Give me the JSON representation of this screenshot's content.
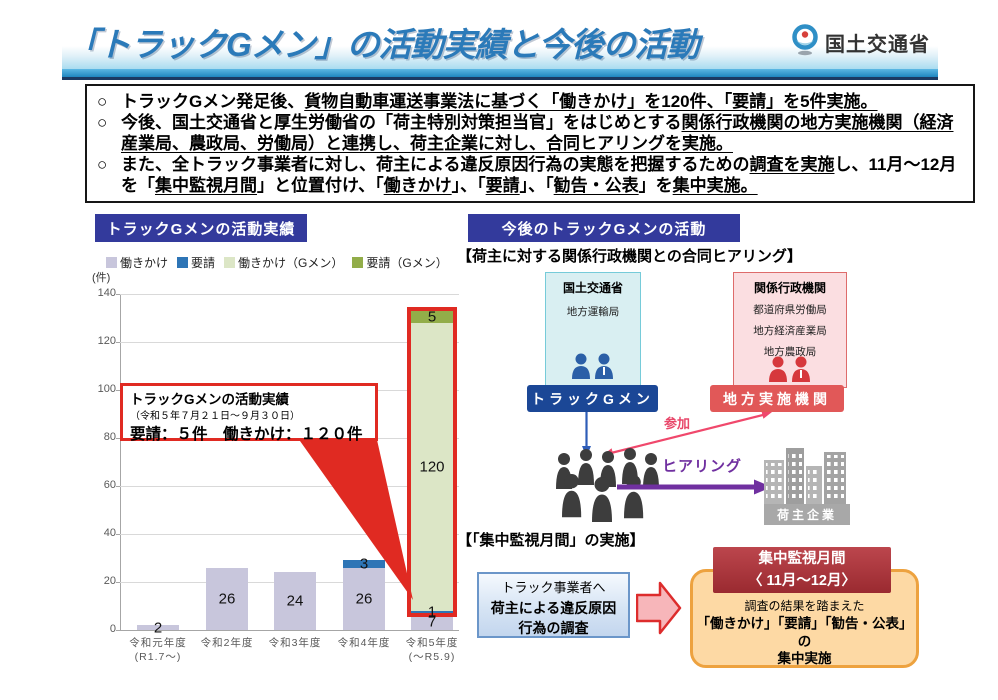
{
  "header": {
    "title": "「トラックGメン」の活動実績と今後の活動",
    "agency_name": "国土交通省"
  },
  "summary": {
    "marker": "○",
    "bullets": [
      {
        "segments": [
          {
            "t": "トラックGメン発足後、"
          },
          {
            "t": "貨物自動車運送事業法に基づく「働きかけ」を120件、「要請」を5件実施。",
            "u": true
          }
        ]
      },
      {
        "segments": [
          {
            "t": "今後、国土交通省と厚生労働省の「荷主特別対策担当官」をはじめとする"
          },
          {
            "t": "関係行政機関の地方実施機関（経済産業局、農政局、労働局）と連携し、荷主企業に対し、合同ヒアリングを実施。",
            "u": true
          }
        ]
      },
      {
        "segments": [
          {
            "t": "また、全トラック事業者に対し、荷主による違反原因行為の実態を把握するための"
          },
          {
            "t": "調査を実施",
            "u": true
          },
          {
            "t": "し、11月～12月を「"
          },
          {
            "t": "集中監視月間",
            "u": true
          },
          {
            "t": "」と位置付け、「"
          },
          {
            "t": "働きかけ",
            "u": true
          },
          {
            "t": "」、「"
          },
          {
            "t": "要請",
            "u": true
          },
          {
            "t": "」、「"
          },
          {
            "t": "勧告・公表",
            "u": true
          },
          {
            "t": "」を"
          },
          {
            "t": "集中実施。",
            "u": true
          }
        ]
      }
    ]
  },
  "left_panel": {
    "badge": "トラックGメンの活動実績",
    "annotation": {
      "title": "トラックGメンの活動実績",
      "period": "（令和５年７月２１日～９月３０日）",
      "stats": "要請：５件　働きかけ：１２０件"
    }
  },
  "chart_data": {
    "type": "bar",
    "stacked": true,
    "unit": "(件)",
    "ylim": [
      0,
      140
    ],
    "ytick_step": 20,
    "grid": true,
    "legend_position": "top",
    "categories": [
      {
        "line1": "令和元年度",
        "line2": "(R1.7～)"
      },
      {
        "line1": "令和2年度",
        "line2": ""
      },
      {
        "line1": "令和3年度",
        "line2": ""
      },
      {
        "line1": "令和4年度",
        "line2": ""
      },
      {
        "line1": "令和5年度",
        "line2": "(～R5.9)"
      }
    ],
    "series": [
      {
        "name": "働きかけ",
        "color": "#c8c6dc",
        "values": [
          2,
          26,
          24,
          26,
          7
        ]
      },
      {
        "name": "要請",
        "color": "#2e75b6",
        "values": [
          0,
          0,
          0,
          3,
          1
        ]
      },
      {
        "name": "働きかけ（Gメン）",
        "color": "#dce6c6",
        "values": [
          0,
          0,
          0,
          0,
          120
        ]
      },
      {
        "name": "要請（Gメン）",
        "color": "#92ad49",
        "values": [
          0,
          0,
          0,
          0,
          5
        ]
      }
    ],
    "highlight": {
      "bar_index": 4,
      "above_series": 0,
      "color": "#e02a22"
    }
  },
  "right_panel": {
    "badge": "今後のトラックGメンの活動",
    "hearing_heading": "【荷主に対する関係行政機関との合同ヒアリング】",
    "mlit_box": {
      "title": "国土交通省",
      "items": [
        "地方運輸局"
      ]
    },
    "agencies_box": {
      "title": "関係行政機関",
      "items": [
        "都道府県労働局",
        "地方経済産業局",
        "地方農政局"
      ]
    },
    "gmen_label": "トラックGメン",
    "regional_label": "地方実施機関",
    "participate_label": "参加",
    "hearing_label": "ヒアリング",
    "shipper_label": "荷主企業",
    "monitoring_heading": "【「集中監視月間」の実施】",
    "survey_box": {
      "line1": "トラック事業者へ",
      "line2": "荷主による違反原因",
      "line3": "行為の調査"
    },
    "monitoring_box": {
      "header_line1": "集中監視月間",
      "header_line2": "〈 11月～12月〉",
      "body_line1": "調査の結果を踏まえた",
      "body_line2": "「働きかけ」「要請」「勧告・公表」の",
      "body_line3": "集中実施"
    }
  },
  "colors": {
    "accent_red": "#e02a22",
    "badge_bg": "#333a9c",
    "gmen_bar": "#1b4796",
    "regional_bar": "#e15858",
    "purple": "#7030a0",
    "participate_red": "#e8476a",
    "monitor_header_bg": "#9a2a30",
    "monitor_box_bg": "#fdd9a4",
    "monitor_box_border": "#eda23f"
  }
}
